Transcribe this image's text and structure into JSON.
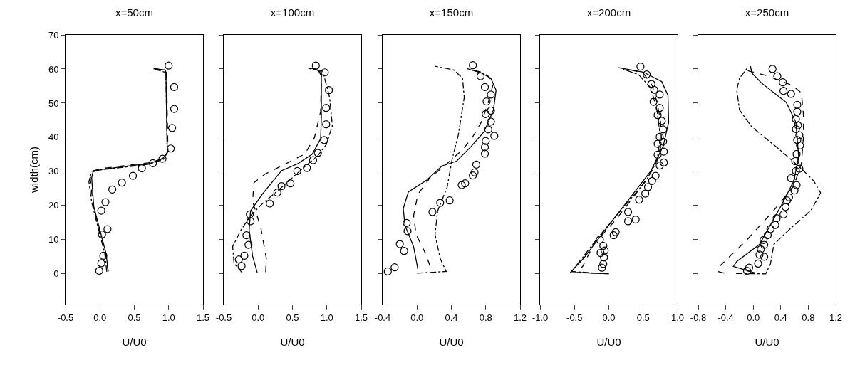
{
  "chart_data": [
    {
      "type": "line",
      "title": "x=50cm",
      "xlabel": "U/U0",
      "ylabel": "width(cm)",
      "xlim": [
        -0.5,
        1.5
      ],
      "xticks": [
        -0.5,
        {
          "value": 0,
          "label": "0.0"
        },
        0.5,
        {
          "value": 1,
          "label": "1.0"
        },
        1.5
      ],
      "ylim": [
        -9,
        70
      ],
      "yticks": [
        0,
        10,
        20,
        30,
        40,
        50,
        60,
        70
      ],
      "series": [
        {
          "type": "scatter",
          "marker": "circle",
          "color": "#000000",
          "x": [
            1.0,
            1.08,
            1.08,
            1.05,
            1.03,
            0.91,
            0.77,
            0.61,
            0.48,
            0.32,
            0.18,
            0.08,
            0.02,
            0.11,
            0.03,
            0.05,
            0.02,
            -0.01
          ],
          "values": [
            61,
            54.7,
            48.3,
            42.7,
            36.7,
            33.7,
            32.4,
            30.9,
            28.7,
            26.7,
            24.7,
            21,
            18.5,
            13.1,
            11.5,
            5.3,
            3.1,
            0.9
          ]
        },
        {
          "type": "line",
          "line_style": "solid",
          "color": "#000000",
          "x": [
            0.12,
            0.09,
            0,
            -0.09,
            -0.12,
            -0.1,
            0.03,
            0.38,
            0.72,
            0.91,
            0.98,
            0.97,
            0.96,
            0.95,
            0.78
          ],
          "values": [
            0.7,
            5.9,
            12.8,
            19.8,
            28.1,
            29.9,
            30.6,
            31.5,
            32.3,
            33.7,
            35.4,
            46.2,
            59,
            59.7,
            60.1
          ]
        },
        {
          "type": "line",
          "line_style": "dashed",
          "color": "#000000",
          "x": [
            0.12,
            0.08,
            0,
            -0.1,
            -0.14,
            -0.1,
            0.05,
            0.4,
            0.75,
            0.93,
            0.99,
            0.98,
            0.97,
            0.8
          ],
          "values": [
            0.8,
            6,
            12.5,
            20,
            28,
            30.2,
            30.9,
            31.8,
            32.6,
            34,
            36,
            46,
            59,
            60.3
          ]
        },
        {
          "type": "line",
          "line_style": "dashdot",
          "color": "#000000",
          "x": [
            0.1,
            0.07,
            -0.02,
            -0.12,
            -0.16,
            -0.12,
            0.03,
            0.38,
            0.72,
            0.92,
            0.98,
            0.97,
            0.96,
            0.78
          ],
          "values": [
            0.6,
            6,
            13,
            21,
            27,
            30,
            30.5,
            31.3,
            32.1,
            33.5,
            35.5,
            46,
            59,
            60
          ]
        }
      ]
    },
    {
      "type": "line",
      "title": "x=100cm",
      "xlabel": "U/U0",
      "xlim": [
        -0.5,
        1.5
      ],
      "xticks": [
        -0.5,
        {
          "value": 0,
          "label": "0.0"
        },
        0.5,
        {
          "value": 1,
          "label": "1.0"
        },
        1.5
      ],
      "ylim": [
        -9,
        70
      ],
      "yticks": [
        0,
        10,
        20,
        30,
        40,
        50,
        60,
        70
      ],
      "tick_labels": "x",
      "series": [
        {
          "type": "scatter",
          "marker": "circle",
          "color": "#000000",
          "x": [
            0.84,
            0.97,
            1.03,
            0.99,
            0.99,
            0.96,
            0.87,
            0.8,
            0.71,
            0.57,
            0.47,
            0.34,
            0.28,
            0.17,
            -0.12,
            -0.11,
            -0.17,
            -0.14,
            -0.2,
            -0.28,
            -0.24
          ],
          "values": [
            61,
            59,
            53.8,
            48.6,
            43.8,
            39.2,
            35.4,
            33.3,
            31,
            30.1,
            26.5,
            25.7,
            23.8,
            20.6,
            17.4,
            15.4,
            11.3,
            8.5,
            5.3,
            4.2,
            2.3
          ]
        },
        {
          "type": "line",
          "line_style": "solid",
          "color": "#000000",
          "x": [
            -0.01,
            -0.08,
            -0.13,
            -0.11,
            0.06,
            0.34,
            0.58,
            0.79,
            0.91,
            0.92,
            0.92,
            0.82,
            0.73
          ],
          "values": [
            0.2,
            5.2,
            12.8,
            18.4,
            23.3,
            30.2,
            32.3,
            35.1,
            39.6,
            46.2,
            59,
            60.1,
            60.2
          ]
        },
        {
          "type": "line",
          "line_style": "dashed",
          "color": "#000000",
          "x": [
            0.11,
            0.12,
            0.04,
            -0.08,
            -0.06,
            0.1,
            0.41,
            0.68,
            0.82,
            0.91,
            0.92,
            0.86
          ],
          "values": [
            0.5,
            4.5,
            13.5,
            21.2,
            26.7,
            29.2,
            32.3,
            35.1,
            39.9,
            47.6,
            58,
            60.1
          ]
        },
        {
          "type": "line",
          "line_style": "dashdot",
          "color": "#000000",
          "x": [
            -0.23,
            -0.35,
            -0.37,
            -0.25,
            -0.11,
            0.06,
            0.34,
            0.65,
            0.86,
            0.99,
            1.08,
            1.04,
            0.94,
            0.75
          ],
          "values": [
            0.3,
            3.1,
            8,
            12.8,
            17,
            20.5,
            25.3,
            30.9,
            34.4,
            37.8,
            43.4,
            51.7,
            59.4,
            60.1
          ]
        }
      ]
    },
    {
      "type": "line",
      "title": "x=150cm",
      "xlabel": "U/U0",
      "xlim": [
        -0.4,
        1.2
      ],
      "xticks": [
        -0.4,
        {
          "value": 0,
          "label": "0.0"
        },
        0.4,
        0.8,
        1.2
      ],
      "ylim": [
        -9,
        70
      ],
      "yticks": [
        0,
        10,
        20,
        30,
        40,
        50,
        60,
        70
      ],
      "tick_labels": "x",
      "series": [
        {
          "type": "scatter",
          "marker": "circle",
          "color": "#000000",
          "x": [
            0.65,
            0.74,
            0.79,
            0.86,
            0.81,
            0.86,
            0.8,
            0.86,
            0.83,
            0.9,
            0.8,
            0.79,
            0.79,
            0.69,
            0.67,
            0.65,
            0.56,
            0.52,
            0.38,
            0.27,
            0.18,
            -0.12,
            -0.11,
            -0.15,
            -0.2,
            -0.26,
            -0.34
          ],
          "values": [
            61.1,
            57.9,
            54.7,
            52.5,
            50.5,
            47.8,
            46.8,
            44.6,
            42.3,
            40.4,
            38.9,
            37.1,
            35.2,
            32,
            29.7,
            28.8,
            26.5,
            26,
            21.5,
            20.8,
            18.1,
            14.9,
            12.5,
            6.7,
            8.7,
            1.9,
            0.7
          ]
        },
        {
          "type": "line",
          "line_style": "solid",
          "color": "#000000",
          "x": [
            0.01,
            -0.04,
            -0.14,
            -0.16,
            -0.1,
            0.11,
            0.29,
            0.46,
            0.63,
            0.78,
            0.89,
            0.92,
            0.86,
            0.75,
            0.58
          ],
          "values": [
            1.4,
            8,
            14.2,
            19.1,
            24,
            27.4,
            31.6,
            33,
            37.3,
            41.6,
            48,
            53.8,
            57.3,
            58.8,
            60.1
          ]
        },
        {
          "type": "line",
          "line_style": "dashed",
          "color": "#000000",
          "x": [
            0.15,
            0.1,
            -0.01,
            -0.04,
            0.01,
            0.15,
            0.35,
            0.54,
            0.65,
            0.75,
            0.83,
            0.89,
            0.8,
            0.6
          ],
          "values": [
            2.4,
            5.9,
            11.5,
            17,
            23.3,
            28.1,
            32.3,
            36.6,
            40.2,
            44.5,
            50.2,
            55.9,
            58.8,
            59.9
          ]
        },
        {
          "type": "line",
          "line_style": "dashdot",
          "color": "#000000",
          "x": [
            0,
            0.34,
            0.27,
            0.21,
            0.24,
            0.35,
            0.41,
            0.48,
            0.55,
            0.53,
            0.43,
            0.21
          ],
          "values": [
            0.2,
            0.7,
            4.5,
            11.5,
            18.4,
            25.3,
            33.7,
            40.6,
            51.7,
            57.3,
            59.7,
            60.8
          ]
        }
      ]
    },
    {
      "type": "line",
      "title": "x=200cm",
      "xlabel": "U/U0",
      "xlim": [
        -1,
        1
      ],
      "xticks": [
        {
          "value": -1,
          "label": "-1.0"
        },
        -0.5,
        {
          "value": 0,
          "label": "0.0"
        },
        0.5,
        {
          "value": 1,
          "label": "1.0"
        }
      ],
      "ylim": [
        -9,
        70
      ],
      "yticks": [
        0,
        10,
        20,
        30,
        40,
        50,
        60,
        70
      ],
      "tick_labels": "x",
      "series": [
        {
          "type": "scatter",
          "marker": "circle",
          "color": "#000000",
          "x": [
            0.46,
            0.55,
            0.62,
            0.66,
            0.74,
            0.65,
            0.74,
            0.71,
            0.77,
            0.79,
            0.74,
            0.79,
            0.71,
            0.8,
            0.71,
            0.8,
            0.74,
            0.68,
            0.63,
            0.57,
            0.53,
            0.44,
            0.28,
            0.39,
            0.28,
            0.1,
            0.07,
            -0.13,
            -0.08,
            -0.06,
            -0.12,
            -0.07,
            -0.08,
            -0.1
          ],
          "values": [
            60.7,
            58.4,
            55.6,
            53.9,
            52.5,
            50.4,
            48.6,
            46.5,
            44.8,
            42.3,
            40.1,
            38.7,
            38.1,
            35.8,
            34.9,
            32.6,
            31.7,
            28.7,
            27.2,
            25.4,
            23.5,
            21.7,
            18.1,
            15.9,
            15.4,
            12.2,
            11.3,
            10,
            8.2,
            6.8,
            6.1,
            4.8,
            2.9,
            1.8
          ]
        },
        {
          "type": "line",
          "line_style": "solid",
          "color": "#000000",
          "x": [
            0,
            -0.56,
            -0.36,
            -0.08,
            0.28,
            0.61,
            0.79,
            0.87,
            0.86,
            0.77,
            0.5,
            0.14
          ],
          "values": [
            0.1,
            0.4,
            4.7,
            12.2,
            21.5,
            30.1,
            37.3,
            44.4,
            52.3,
            56.3,
            59.1,
            60.4
          ]
        },
        {
          "type": "line",
          "line_style": "dashed",
          "color": "#000000",
          "x": [
            0,
            -0.47,
            -0.38,
            -0.22,
            0.1,
            0.43,
            0.65,
            0.77,
            0.75,
            0.7,
            0.63,
            0.5,
            0.25
          ],
          "values": [
            0,
            0.4,
            2.2,
            8.6,
            15.8,
            24.4,
            30.8,
            38,
            45.2,
            50.2,
            55.2,
            58.8,
            60.1
          ]
        },
        {
          "type": "line",
          "line_style": "dashdot",
          "color": "#000000",
          "x": [
            -0.1,
            -0.54,
            -0.4,
            -0.15,
            0.21,
            0.54,
            0.7,
            0.75,
            0.7,
            0.61,
            0.43,
            0.21
          ],
          "values": [
            0.1,
            0.7,
            4.3,
            10.8,
            19.4,
            27.2,
            33,
            40.1,
            48,
            54.5,
            58.4,
            59.9
          ]
        }
      ]
    },
    {
      "type": "line",
      "title": "x=250cm",
      "xlabel": "U/U0",
      "xlim": [
        -0.8,
        1.2
      ],
      "xticks": [
        -0.8,
        -0.4,
        {
          "value": 0,
          "label": "0.0"
        },
        0.4,
        0.8,
        1.2
      ],
      "ylim": [
        -9,
        70
      ],
      "yticks": [
        0,
        10,
        20,
        30,
        40,
        50,
        60,
        70
      ],
      "tick_labels": "x",
      "series": [
        {
          "type": "scatter",
          "marker": "circle",
          "color": "#000000",
          "x": [
            0.28,
            0.35,
            0.43,
            0.44,
            0.55,
            0.64,
            0.64,
            0.62,
            0.65,
            0.62,
            0.67,
            0.64,
            0.68,
            0.63,
            0.61,
            0.67,
            0.62,
            0.55,
            0.63,
            0.6,
            0.52,
            0.49,
            0.47,
            0.44,
            0.34,
            0.32,
            0.25,
            0.21,
            0.15,
            0.16,
            0.11,
            0.16,
            0.09,
            0.07,
            -0.06,
            -0.09
          ],
          "values": [
            60,
            57.9,
            56.1,
            53.6,
            52.7,
            49.5,
            47.5,
            45.3,
            43.5,
            42.4,
            40.6,
            39.2,
            37.6,
            35.1,
            33,
            30.8,
            30.1,
            28,
            26,
            24.4,
            22.4,
            21.5,
            19.6,
            17.4,
            16.3,
            14.3,
            13.1,
            11.3,
            9.9,
            8.5,
            7.2,
            5,
            5.6,
            3,
            1.8,
            0.9
          ]
        },
        {
          "type": "line",
          "line_style": "solid",
          "color": "#000000",
          "x": [
            0.02,
            -0.29,
            -0.24,
            0.09,
            0.41,
            0.59,
            0.66,
            0.62,
            0.48,
            0.12,
            -0.02,
            -0.04
          ],
          "values": [
            0.3,
            2.2,
            3.6,
            8.6,
            20.1,
            27.2,
            34.4,
            44.4,
            50.2,
            55.9,
            58.8,
            60.8
          ]
        },
        {
          "type": "line",
          "line_style": "dashed",
          "color": "#000000",
          "x": [
            -0.42,
            -0.52,
            -0.49,
            -0.09,
            0.3,
            0.59,
            0.7,
            0.73,
            0.73,
            0.7,
            0.57,
            0.19,
            -0.08
          ],
          "values": [
            0.2,
            0.7,
            2.2,
            10,
            18.6,
            25.8,
            32.3,
            40.1,
            46.6,
            53,
            55.2,
            58.1,
            59.5
          ]
        },
        {
          "type": "line",
          "line_style": "dashdot",
          "color": "#000000",
          "x": [
            -0.25,
            0.18,
            0.25,
            0.3,
            0.52,
            0.84,
            0.98,
            0.88,
            0.7,
            0.37,
            -0.02,
            -0.2,
            -0.24,
            -0.2,
            -0.09
          ],
          "values": [
            0.1,
            0,
            2.9,
            8.6,
            12.9,
            18.6,
            23.7,
            27.2,
            30.8,
            36.6,
            43,
            48,
            53.8,
            57.3,
            60.2
          ]
        }
      ]
    }
  ]
}
